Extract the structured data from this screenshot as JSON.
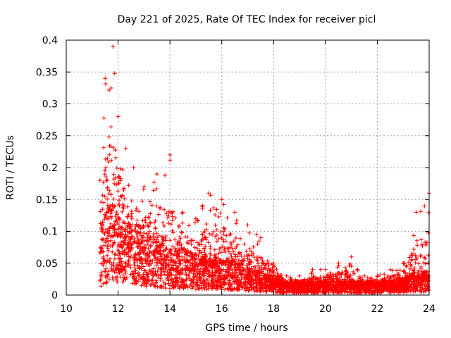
{
  "chart_data": {
    "type": "scatter",
    "title": "Day 221 of 2025, Rate Of TEC Index for receiver picl",
    "xlabel": "GPS time / hours",
    "ylabel": "ROTI / TECUs",
    "xlim": [
      10,
      24
    ],
    "ylim": [
      0,
      0.4
    ],
    "grid": true,
    "marker": "+",
    "color": "#ff0000",
    "x_ticks": [
      10,
      12,
      14,
      16,
      18,
      20,
      22,
      24
    ],
    "x_tick_labels": [
      "10",
      "12",
      "14",
      "16",
      "18",
      "20",
      "22",
      "24"
    ],
    "y_ticks": [
      0,
      0.05,
      0.1,
      0.15,
      0.2,
      0.25,
      0.3,
      0.35,
      0.4
    ],
    "y_tick_labels": [
      "0",
      "0.05",
      "0.1",
      "0.15",
      "0.2",
      "0.25",
      "0.3",
      "0.35",
      "0.4"
    ],
    "series": [
      {
        "name": "ROTI",
        "envelope_hours": [
          11.3,
          11.5,
          11.8,
          12.0,
          12.3,
          12.6,
          13.0,
          13.5,
          14.0,
          14.5,
          15.0,
          15.5,
          16.0,
          16.5,
          17.0,
          17.5,
          18.0,
          18.5,
          19.0,
          19.5,
          20.0,
          20.5,
          21.0,
          21.5,
          22.0,
          22.5,
          23.0,
          23.5,
          24.0
        ],
        "envelope_max": [
          0.18,
          0.34,
          0.39,
          0.28,
          0.23,
          0.2,
          0.17,
          0.19,
          0.22,
          0.13,
          0.12,
          0.16,
          0.15,
          0.13,
          0.11,
          0.09,
          0.05,
          0.03,
          0.03,
          0.04,
          0.04,
          0.05,
          0.06,
          0.03,
          0.03,
          0.04,
          0.05,
          0.13,
          0.16
        ],
        "envelope_median": [
          0.05,
          0.07,
          0.08,
          0.07,
          0.06,
          0.06,
          0.05,
          0.05,
          0.04,
          0.04,
          0.035,
          0.035,
          0.03,
          0.03,
          0.025,
          0.02,
          0.015,
          0.012,
          0.012,
          0.012,
          0.012,
          0.012,
          0.012,
          0.012,
          0.012,
          0.012,
          0.015,
          0.02,
          0.02
        ]
      }
    ]
  }
}
